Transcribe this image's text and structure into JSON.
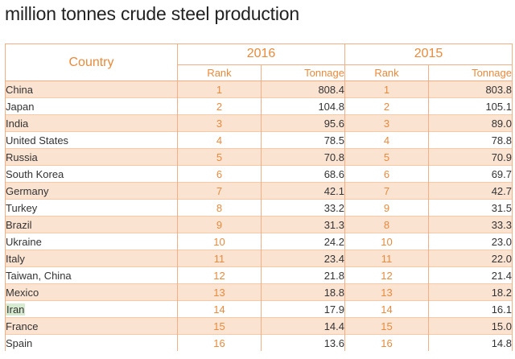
{
  "title": "million tonnes crude steel production",
  "table": {
    "country_header": "Country",
    "years": [
      "2016",
      "2015"
    ],
    "rank_label": "Rank",
    "tonnage_label": "Tonnage",
    "highlight_color": "#d6ead0",
    "accent_color": "#e98a3c",
    "rows": [
      {
        "country": "China",
        "rank_2016": "1",
        "tonnage_2016": "808.4",
        "rank_2015": "1",
        "tonnage_2015": "803.8"
      },
      {
        "country": "Japan",
        "rank_2016": "2",
        "tonnage_2016": "104.8",
        "rank_2015": "2",
        "tonnage_2015": "105.1"
      },
      {
        "country": "India",
        "rank_2016": "3",
        "tonnage_2016": "95.6",
        "rank_2015": "3",
        "tonnage_2015": "89.0"
      },
      {
        "country": "United States",
        "rank_2016": "4",
        "tonnage_2016": "78.5",
        "rank_2015": "4",
        "tonnage_2015": "78.8"
      },
      {
        "country": "Russia",
        "rank_2016": "5",
        "tonnage_2016": "70.8",
        "rank_2015": "5",
        "tonnage_2015": "70.9"
      },
      {
        "country": "South Korea",
        "rank_2016": "6",
        "tonnage_2016": "68.6",
        "rank_2015": "6",
        "tonnage_2015": "69.7"
      },
      {
        "country": "Germany",
        "rank_2016": "7",
        "tonnage_2016": "42.1",
        "rank_2015": "7",
        "tonnage_2015": "42.7"
      },
      {
        "country": "Turkey",
        "rank_2016": "8",
        "tonnage_2016": "33.2",
        "rank_2015": "9",
        "tonnage_2015": "31.5"
      },
      {
        "country": "Brazil",
        "rank_2016": "9",
        "tonnage_2016": "31.3",
        "rank_2015": "8",
        "tonnage_2015": "33.3"
      },
      {
        "country": "Ukraine",
        "rank_2016": "10",
        "tonnage_2016": "24.2",
        "rank_2015": "10",
        "tonnage_2015": "23.0"
      },
      {
        "country": "Italy",
        "rank_2016": "11",
        "tonnage_2016": "23.4",
        "rank_2015": "11",
        "tonnage_2015": "22.0"
      },
      {
        "country": "Taiwan, China",
        "rank_2016": "12",
        "tonnage_2016": "21.8",
        "rank_2015": "12",
        "tonnage_2015": "21.4"
      },
      {
        "country": "Mexico",
        "rank_2016": "13",
        "tonnage_2016": "18.8",
        "rank_2015": "13",
        "tonnage_2015": "18.2"
      },
      {
        "country": "Iran",
        "rank_2016": "14",
        "tonnage_2016": "17.9",
        "rank_2015": "14",
        "tonnage_2015": "16.1",
        "highlighted": true
      },
      {
        "country": "France",
        "rank_2016": "15",
        "tonnage_2016": "14.4",
        "rank_2015": "15",
        "tonnage_2015": "15.0"
      },
      {
        "country": "Spain",
        "rank_2016": "16",
        "tonnage_2016": "13.6",
        "rank_2015": "16",
        "tonnage_2015": "14.8"
      }
    ]
  }
}
